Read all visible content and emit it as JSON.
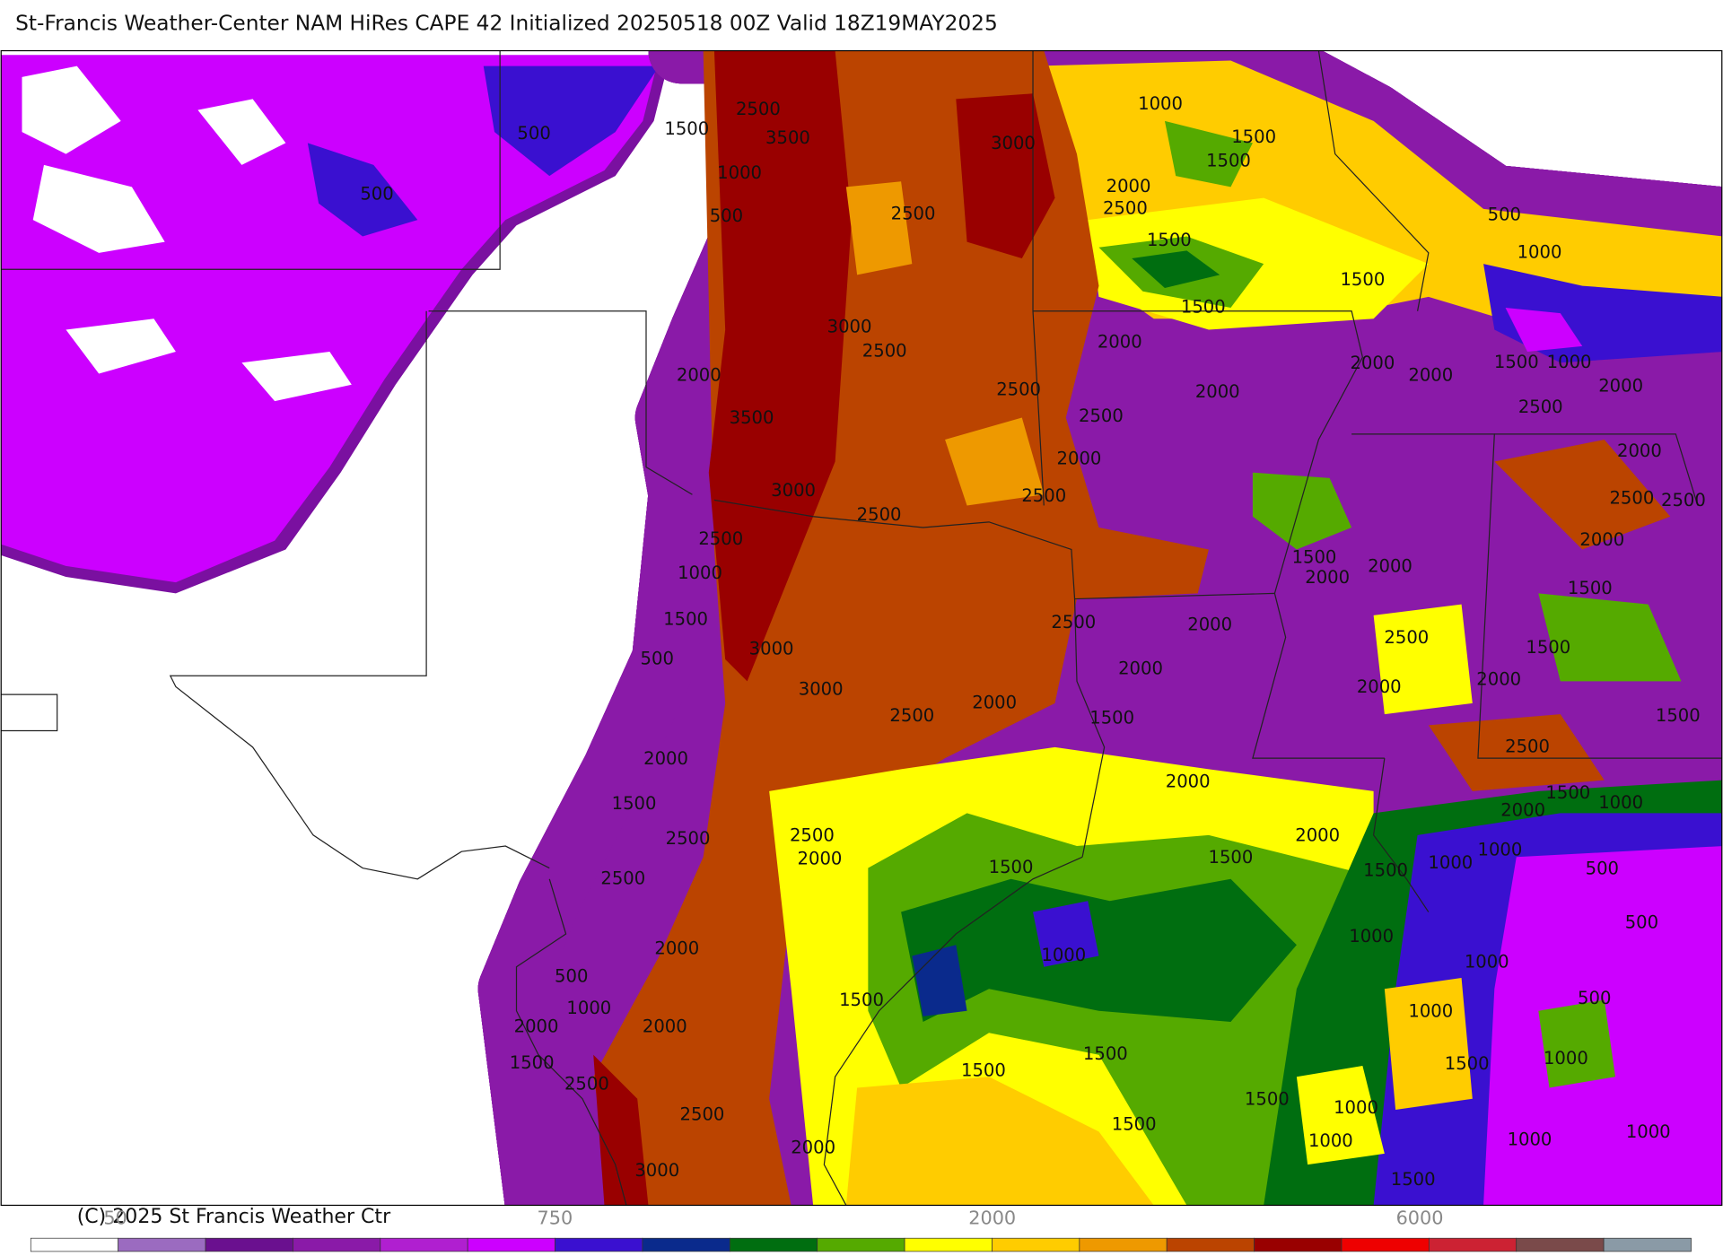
{
  "header": {
    "title": "St-Francis Weather-Center NAM HiRes CAPE  42 Initialized 20250518 00Z Valid 18Z19MAY2025"
  },
  "footer": {
    "copyright": "(C) 2025 St Francis Weather Ctr"
  },
  "colorbar": {
    "colors": [
      "#ffffff",
      "#9b6bc0",
      "#6a108f",
      "#8a1aa8",
      "#b01fd0",
      "#cc00ff",
      "#3a10d0",
      "#0a2a8c",
      "#006e10",
      "#55aa00",
      "#ffff00",
      "#ffcc00",
      "#ee9900",
      "#bb4400",
      "#990000",
      "#ee0000",
      "#cc2233",
      "#7a4a4a",
      "#8a9aa6",
      "#aee0ea"
    ],
    "labels": [
      "50",
      "750",
      "2000",
      "6000"
    ]
  },
  "map": {
    "contour_labels": [
      2500,
      1500,
      3500,
      500,
      1000,
      500,
      500,
      1000,
      1500,
      1500,
      3000,
      2500,
      2000,
      2500,
      1500,
      500,
      1000,
      1500,
      1500,
      3000,
      2500,
      2000,
      2000,
      2000,
      1500,
      1000,
      2000,
      2000,
      2500,
      2000,
      2500,
      3500,
      2500,
      2000,
      2000,
      3000,
      2500,
      2500,
      2500,
      2500,
      2500,
      2000,
      1000,
      1500,
      2000,
      2000,
      1500,
      1500,
      2500,
      2000,
      500,
      3000,
      2500,
      1500,
      3000,
      2000,
      2000,
      2000,
      2000,
      2500,
      1500,
      1500,
      2000,
      2500,
      2000,
      1500,
      1000,
      1500,
      2000,
      2500,
      2500,
      2000,
      2000,
      1000,
      1500,
      1500,
      1500,
      1000,
      500,
      2500,
      500,
      1000,
      2000,
      1000,
      1000,
      500,
      1000,
      500,
      1500,
      1000,
      2000,
      2000,
      1500,
      1500,
      1500,
      1500,
      1000,
      2500,
      1500,
      1000,
      2500,
      1500,
      1000,
      2000,
      1000,
      1000,
      3000,
      1500
    ]
  }
}
